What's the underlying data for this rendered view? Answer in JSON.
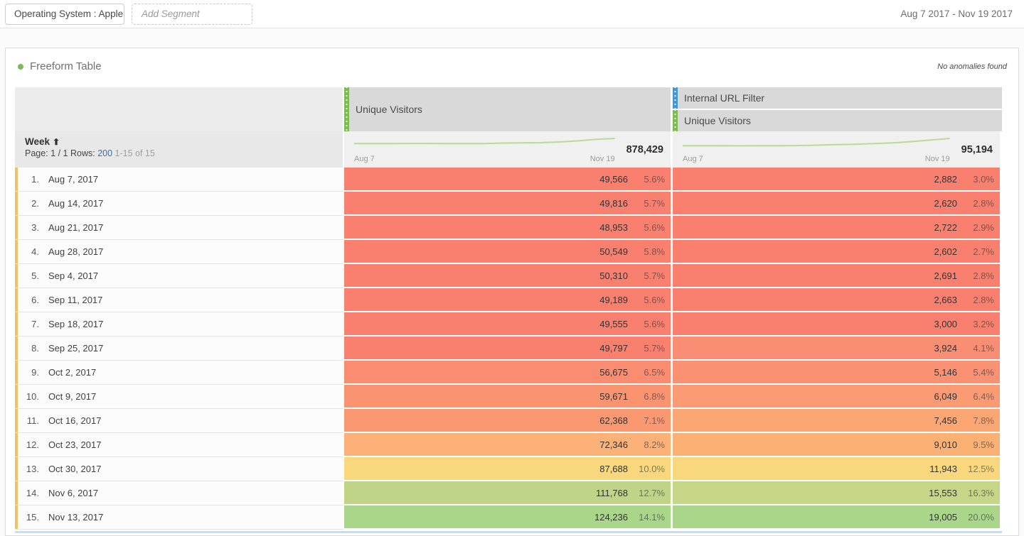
{
  "top_bar": {
    "segment_chip": "Operating System : Apple",
    "add_segment": "Add Segment",
    "date_range": "Aug 7 2017 - Nov 19 2017"
  },
  "panel": {
    "title": "Freeform Table",
    "anomalies_note": "No anomalies found"
  },
  "colors": {
    "green_accent": "#7dba52",
    "blue_accent": "#4596ce",
    "spark_line": "#b9da92",
    "row_strip": "#ecc467",
    "link_blue": "#3c6ea5",
    "bottom_line": "#cbdde9"
  },
  "table": {
    "col1": {
      "label": "Unique Visitors"
    },
    "col2": {
      "group_label": "Internal URL Filter",
      "label": "Unique Visitors"
    },
    "dimension": {
      "label": "Week",
      "sort_arrow": "⬆",
      "page_label": "Page:",
      "page_value": "1 / 1",
      "rows_label": "Rows:",
      "rows_value": "200",
      "range_text": "1-15 of 15"
    },
    "spark_start_label": "Aug 7",
    "spark_end_label": "Nov 19",
    "totals": {
      "uv": "878,429",
      "iuf": "95,194"
    },
    "rows": [
      {
        "index": "1.",
        "week": "Aug 7, 2017",
        "uv": "49,566",
        "uv_pct": "5.6%",
        "uv_bg": "#f9806f",
        "iuf": "2,882",
        "iuf_pct": "3.0%",
        "iuf_bg": "#f9806f"
      },
      {
        "index": "2.",
        "week": "Aug 14, 2017",
        "uv": "49,816",
        "uv_pct": "5.7%",
        "uv_bg": "#f9806f",
        "iuf": "2,620",
        "iuf_pct": "2.8%",
        "iuf_bg": "#f9806f"
      },
      {
        "index": "3.",
        "week": "Aug 21, 2017",
        "uv": "48,953",
        "uv_pct": "5.6%",
        "uv_bg": "#f9806f",
        "iuf": "2,722",
        "iuf_pct": "2.9%",
        "iuf_bg": "#f9806f"
      },
      {
        "index": "4.",
        "week": "Aug 28, 2017",
        "uv": "50,549",
        "uv_pct": "5.8%",
        "uv_bg": "#f9806f",
        "iuf": "2,602",
        "iuf_pct": "2.7%",
        "iuf_bg": "#f9806f"
      },
      {
        "index": "5.",
        "week": "Sep 4, 2017",
        "uv": "50,310",
        "uv_pct": "5.7%",
        "uv_bg": "#f9806f",
        "iuf": "2,691",
        "iuf_pct": "2.8%",
        "iuf_bg": "#f9806f"
      },
      {
        "index": "6.",
        "week": "Sep 11, 2017",
        "uv": "49,189",
        "uv_pct": "5.6%",
        "uv_bg": "#f9806f",
        "iuf": "2,663",
        "iuf_pct": "2.8%",
        "iuf_bg": "#f9806f"
      },
      {
        "index": "7.",
        "week": "Sep 18, 2017",
        "uv": "49,555",
        "uv_pct": "5.6%",
        "uv_bg": "#f9806f",
        "iuf": "3,000",
        "iuf_pct": "3.2%",
        "iuf_bg": "#f9806f"
      },
      {
        "index": "8.",
        "week": "Sep 25, 2017",
        "uv": "49,797",
        "uv_pct": "5.7%",
        "uv_bg": "#f9806f",
        "iuf": "3,924",
        "iuf_pct": "4.1%",
        "iuf_bg": "#fa8e74"
      },
      {
        "index": "9.",
        "week": "Oct 2, 2017",
        "uv": "56,675",
        "uv_pct": "6.5%",
        "uv_bg": "#fa8d71",
        "iuf": "5,146",
        "iuf_pct": "5.4%",
        "iuf_bg": "#fa9173"
      },
      {
        "index": "10.",
        "week": "Oct 9, 2017",
        "uv": "59,671",
        "uv_pct": "6.8%",
        "uv_bg": "#fa9470",
        "iuf": "6,049",
        "iuf_pct": "6.4%",
        "iuf_bg": "#fa9b73"
      },
      {
        "index": "11.",
        "week": "Oct 16, 2017",
        "uv": "62,368",
        "uv_pct": "7.1%",
        "uv_bg": "#fa9871",
        "iuf": "7,456",
        "iuf_pct": "7.8%",
        "iuf_bg": "#fba673"
      },
      {
        "index": "12.",
        "week": "Oct 23, 2017",
        "uv": "72,346",
        "uv_pct": "8.2%",
        "uv_bg": "#fbb178",
        "iuf": "9,010",
        "iuf_pct": "9.5%",
        "iuf_bg": "#fbb074"
      },
      {
        "index": "13.",
        "week": "Oct 30, 2017",
        "uv": "87,688",
        "uv_pct": "10.0%",
        "uv_bg": "#f8d77d",
        "iuf": "11,943",
        "iuf_pct": "12.5%",
        "iuf_bg": "#f8d77d"
      },
      {
        "index": "14.",
        "week": "Nov 6, 2017",
        "uv": "111,768",
        "uv_pct": "12.7%",
        "uv_bg": "#c0d488",
        "iuf": "15,553",
        "iuf_pct": "16.3%",
        "iuf_bg": "#c6d687"
      },
      {
        "index": "15.",
        "week": "Nov 13, 2017",
        "uv": "124,236",
        "uv_pct": "14.1%",
        "uv_bg": "#a9d689",
        "iuf": "19,005",
        "iuf_pct": "20.0%",
        "iuf_bg": "#a9d689"
      }
    ]
  }
}
